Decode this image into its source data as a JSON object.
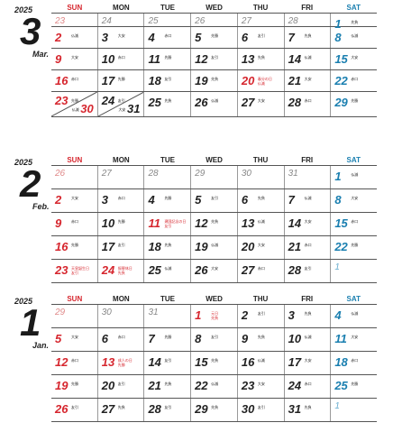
{
  "day_headers": [
    "SUN",
    "MON",
    "TUE",
    "WED",
    "THU",
    "FRI",
    "SAT"
  ],
  "months": [
    {
      "year": "2025",
      "number": "3",
      "name": "Mar.",
      "weeks": [
        [
          {
            "d": "23",
            "out": true
          },
          {
            "d": "24",
            "out": true
          },
          {
            "d": "25",
            "out": true
          },
          {
            "d": "26",
            "out": true
          },
          {
            "d": "27",
            "out": true
          },
          {
            "d": "28",
            "out": true
          },
          {
            "d": "1",
            "r": "先負"
          }
        ],
        [
          {
            "d": "2",
            "r": "仏滅"
          },
          {
            "d": "3",
            "r": "大安"
          },
          {
            "d": "4",
            "r": "赤口"
          },
          {
            "d": "5",
            "r": "先勝"
          },
          {
            "d": "6",
            "r": "友引"
          },
          {
            "d": "7",
            "r": "先負"
          },
          {
            "d": "8",
            "r": "仏滅"
          }
        ],
        [
          {
            "d": "9",
            "r": "大安"
          },
          {
            "d": "10",
            "r": "赤口"
          },
          {
            "d": "11",
            "r": "先勝"
          },
          {
            "d": "12",
            "r": "友引"
          },
          {
            "d": "13",
            "r": "先負"
          },
          {
            "d": "14",
            "r": "仏滅"
          },
          {
            "d": "15",
            "r": "大安"
          }
        ],
        [
          {
            "d": "16",
            "r": "赤口"
          },
          {
            "d": "17",
            "r": "先勝"
          },
          {
            "d": "18",
            "r": "友引"
          },
          {
            "d": "19",
            "r": "先負"
          },
          {
            "d": "20",
            "hol": true,
            "h": "春分の日",
            "r": "仏滅"
          },
          {
            "d": "21",
            "r": "大安"
          },
          {
            "d": "22",
            "r": "赤口"
          }
        ],
        [
          {
            "d": "23",
            "r": "先勝",
            "d2": "30",
            "r2": "仏滅"
          },
          {
            "d": "24",
            "r": "友引",
            "d2": "31",
            "r2": "大安"
          },
          {
            "d": "25",
            "r": "先負"
          },
          {
            "d": "26",
            "r": "仏滅"
          },
          {
            "d": "27",
            "r": "大安"
          },
          {
            "d": "28",
            "r": "赤口"
          },
          {
            "d": "29",
            "r": "先勝"
          }
        ]
      ]
    },
    {
      "year": "2025",
      "number": "2",
      "name": "Feb.",
      "weeks": [
        [
          {
            "d": "26",
            "out": true
          },
          {
            "d": "27",
            "out": true
          },
          {
            "d": "28",
            "out": true
          },
          {
            "d": "29",
            "out": true
          },
          {
            "d": "30",
            "out": true
          },
          {
            "d": "31",
            "out": true
          },
          {
            "d": "1",
            "r": "仏滅"
          }
        ],
        [
          {
            "d": "2",
            "r": "大安"
          },
          {
            "d": "3",
            "r": "赤口"
          },
          {
            "d": "4",
            "r": "先勝"
          },
          {
            "d": "5",
            "r": "友引"
          },
          {
            "d": "6",
            "r": "先負"
          },
          {
            "d": "7",
            "r": "仏滅"
          },
          {
            "d": "8",
            "r": "大安"
          }
        ],
        [
          {
            "d": "9",
            "r": "赤口"
          },
          {
            "d": "10",
            "r": "先勝"
          },
          {
            "d": "11",
            "hol": true,
            "h": "建国記念の日",
            "r": "友引"
          },
          {
            "d": "12",
            "r": "先負"
          },
          {
            "d": "13",
            "r": "仏滅"
          },
          {
            "d": "14",
            "r": "大安"
          },
          {
            "d": "15",
            "r": "赤口"
          }
        ],
        [
          {
            "d": "16",
            "r": "先勝"
          },
          {
            "d": "17",
            "r": "友引"
          },
          {
            "d": "18",
            "r": "先負"
          },
          {
            "d": "19",
            "r": "仏滅"
          },
          {
            "d": "20",
            "r": "大安"
          },
          {
            "d": "21",
            "r": "赤口"
          },
          {
            "d": "22",
            "r": "先勝"
          }
        ],
        [
          {
            "d": "23",
            "hol": true,
            "h": "天皇誕生日",
            "r": "友引"
          },
          {
            "d": "24",
            "hol": true,
            "h": "振替休日",
            "r": "先負"
          },
          {
            "d": "25",
            "r": "仏滅"
          },
          {
            "d": "26",
            "r": "大安"
          },
          {
            "d": "27",
            "r": "赤口"
          },
          {
            "d": "28",
            "r": "友引"
          },
          {
            "d": "1",
            "out": true
          }
        ]
      ]
    },
    {
      "year": "2025",
      "number": "1",
      "name": "Jan.",
      "weeks": [
        [
          {
            "d": "29",
            "out": true
          },
          {
            "d": "30",
            "out": true
          },
          {
            "d": "31",
            "out": true
          },
          {
            "d": "1",
            "hol": true,
            "h": "元日",
            "r": "先負"
          },
          {
            "d": "2",
            "r": "友引"
          },
          {
            "d": "3",
            "r": "先負"
          },
          {
            "d": "4",
            "r": "仏滅"
          }
        ],
        [
          {
            "d": "5",
            "r": "大安"
          },
          {
            "d": "6",
            "r": "赤口"
          },
          {
            "d": "7",
            "r": "先勝"
          },
          {
            "d": "8",
            "r": "友引"
          },
          {
            "d": "9",
            "r": "先負"
          },
          {
            "d": "10",
            "r": "仏滅"
          },
          {
            "d": "11",
            "r": "大安"
          }
        ],
        [
          {
            "d": "12",
            "r": "赤口"
          },
          {
            "d": "13",
            "hol": true,
            "h": "成人の日",
            "r": "先勝"
          },
          {
            "d": "14",
            "r": "友引"
          },
          {
            "d": "15",
            "r": "先負"
          },
          {
            "d": "16",
            "r": "仏滅"
          },
          {
            "d": "17",
            "r": "大安"
          },
          {
            "d": "18",
            "r": "赤口"
          }
        ],
        [
          {
            "d": "19",
            "r": "先勝"
          },
          {
            "d": "20",
            "r": "友引"
          },
          {
            "d": "21",
            "r": "先負"
          },
          {
            "d": "22",
            "r": "仏滅"
          },
          {
            "d": "23",
            "r": "大安"
          },
          {
            "d": "24",
            "r": "赤口"
          },
          {
            "d": "25",
            "r": "先勝"
          }
        ],
        [
          {
            "d": "26",
            "r": "友引"
          },
          {
            "d": "27",
            "r": "先負"
          },
          {
            "d": "28",
            "r": "友引"
          },
          {
            "d": "29",
            "r": "先負"
          },
          {
            "d": "30",
            "r": "友引"
          },
          {
            "d": "31",
            "r": "先負"
          },
          {
            "d": "1",
            "out": true
          }
        ]
      ]
    }
  ]
}
